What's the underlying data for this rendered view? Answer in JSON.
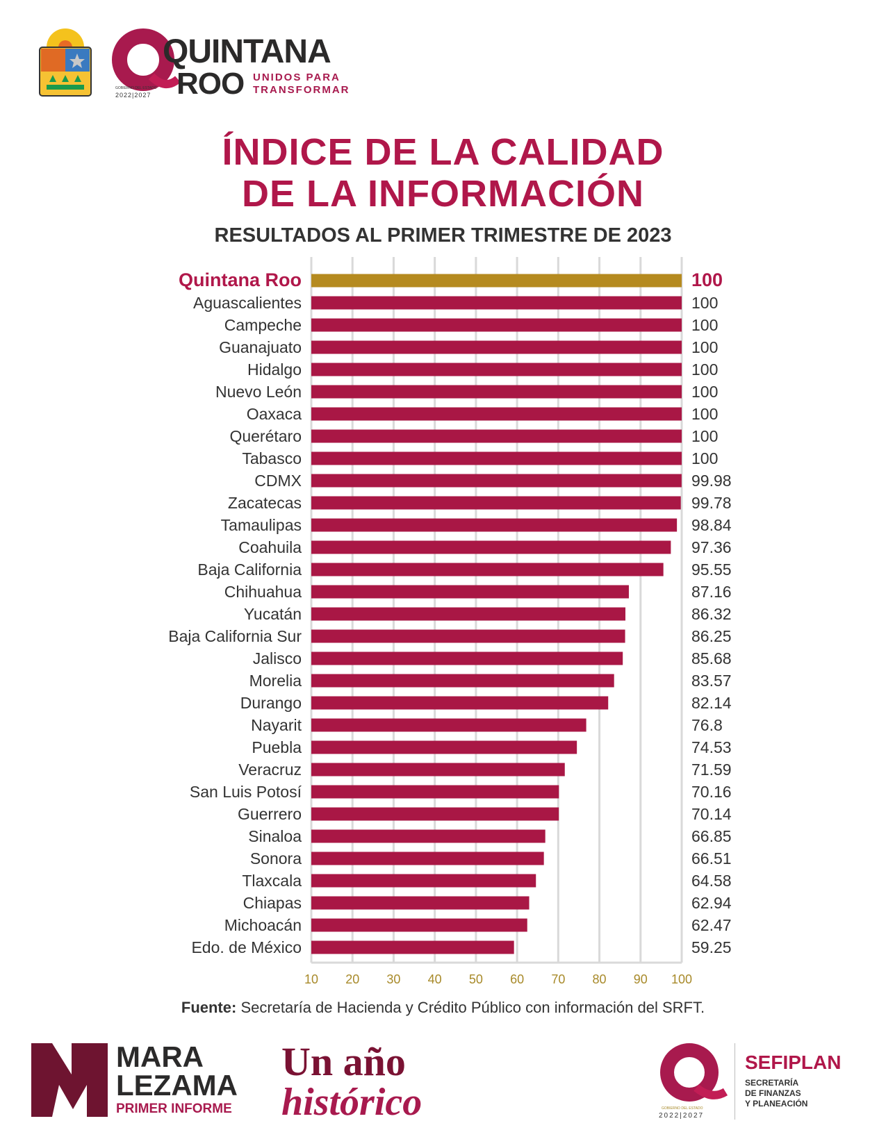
{
  "header": {
    "brand_line1": "QUINTANA",
    "brand_line2": "ROO",
    "slogan_line1": "UNIDOS PARA",
    "slogan_line2": "TRANSFORMAR",
    "government_label": "GOBIERNO DEL ESTADO",
    "period": "2022|2027"
  },
  "colors": {
    "bar": "#a91745",
    "highlight_bar": "#b58a1f",
    "title": "#b0174a",
    "tick_labels": "#a88a2a",
    "grid": "#d9d9d9"
  },
  "chart_data": {
    "type": "bar",
    "orientation": "horizontal",
    "title": "ÍNDICE DE LA CALIDAD DE LA INFORMACIÓN",
    "title_line1": "ÍNDICE DE LA CALIDAD",
    "title_line2": "DE LA INFORMACIÓN",
    "subtitle": "RESULTADOS AL PRIMER TRIMESTRE DE 2023",
    "xlim": [
      10,
      100
    ],
    "x_ticks": [
      10,
      20,
      30,
      40,
      50,
      60,
      70,
      80,
      90,
      100
    ],
    "grid": true,
    "highlight": "Quintana Roo",
    "categories": [
      "Quintana Roo",
      "Aguascalientes",
      "Campeche",
      "Guanajuato",
      "Hidalgo",
      "Nuevo León",
      "Oaxaca",
      "Querétaro",
      "Tabasco",
      "CDMX",
      "Zacatecas",
      "Tamaulipas",
      "Coahuila",
      "Baja California",
      "Chihuahua",
      "Yucatán",
      "Baja California Sur",
      "Jalisco",
      "Morelia",
      "Durango",
      "Nayarit",
      "Puebla",
      "Veracruz",
      "San Luis Potosí",
      "Guerrero",
      "Sinaloa",
      "Sonora",
      "Tlaxcala",
      "Chiapas",
      "Michoacán",
      "Edo. de México"
    ],
    "values": [
      100,
      100,
      100,
      100,
      100,
      100,
      100,
      100,
      100,
      99.98,
      99.78,
      98.84,
      97.36,
      95.55,
      87.16,
      86.32,
      86.25,
      85.68,
      83.57,
      82.14,
      76.8,
      74.53,
      71.59,
      70.16,
      70.14,
      66.85,
      66.51,
      64.58,
      62.94,
      62.47,
      59.25
    ],
    "value_labels": [
      "100",
      "100",
      "100",
      "100",
      "100",
      "100",
      "100",
      "100",
      "100",
      "99.98",
      "99.78",
      "98.84",
      "97.36",
      "95.55",
      "87.16",
      "86.32",
      "86.25",
      "85.68",
      "83.57",
      "82.14",
      "76.8",
      "74.53",
      "71.59",
      "70.16",
      "70.14",
      "66.85",
      "66.51",
      "64.58",
      "62.94",
      "62.47",
      "59.25"
    ]
  },
  "source": {
    "label": "Fuente:",
    "text": " Secretaría de Hacienda y Crédito Público con información del SRFT."
  },
  "footer": {
    "mara_line1": "MARA",
    "mara_line2": "LEZAMA",
    "mara_line3": "PRIMER INFORME",
    "campaign_line1": "Un año",
    "campaign_line2": "histórico",
    "sefiplan_title": "SEFIPLAN",
    "sefiplan_line1": "SECRETARÍA",
    "sefiplan_line2": "DE FINANZAS",
    "sefiplan_line3": "Y PLANEACIÓN",
    "government_label": "GOBIERNO DEL ESTADO",
    "period": "2022|2027"
  }
}
